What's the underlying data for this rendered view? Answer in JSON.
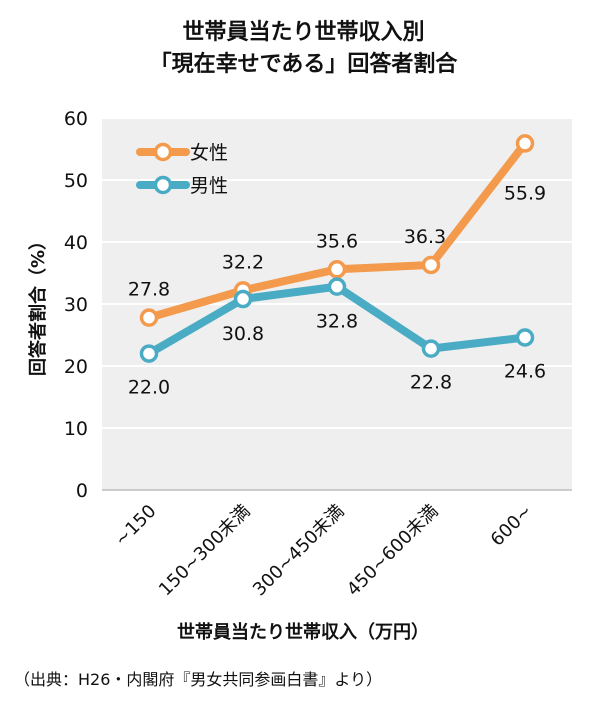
{
  "chart_data": {
    "type": "line",
    "title_line1": "世帯員当たり世帯収入別",
    "title_line2": "「現在幸せである」回答者割合",
    "xlabel": "世帯員当たり世帯収入（万円）",
    "ylabel": "回答者割合（%）",
    "categories": [
      "~150",
      "150~300未満",
      "300~450未満",
      "450~600未満",
      "600~"
    ],
    "ylim": [
      0,
      60
    ],
    "yticks": [
      "0",
      "10",
      "20",
      "30",
      "40",
      "50",
      "60"
    ],
    "grid": true,
    "legend_position": "top-left",
    "series": [
      {
        "name": "女性",
        "color": "#f39a4c",
        "values": [
          27.8,
          32.2,
          35.6,
          36.3,
          55.9
        ],
        "labels": [
          "27.8",
          "32.2",
          "35.6",
          "36.3",
          "55.9"
        ]
      },
      {
        "name": "男性",
        "color": "#4aabc4",
        "values": [
          22.0,
          30.8,
          32.8,
          22.8,
          24.6
        ],
        "labels": [
          "22.0",
          "30.8",
          "32.8",
          "22.8",
          "24.6"
        ]
      }
    ]
  },
  "source_note": "（出典：H26・内閣府『男女共同参画白書』より）"
}
